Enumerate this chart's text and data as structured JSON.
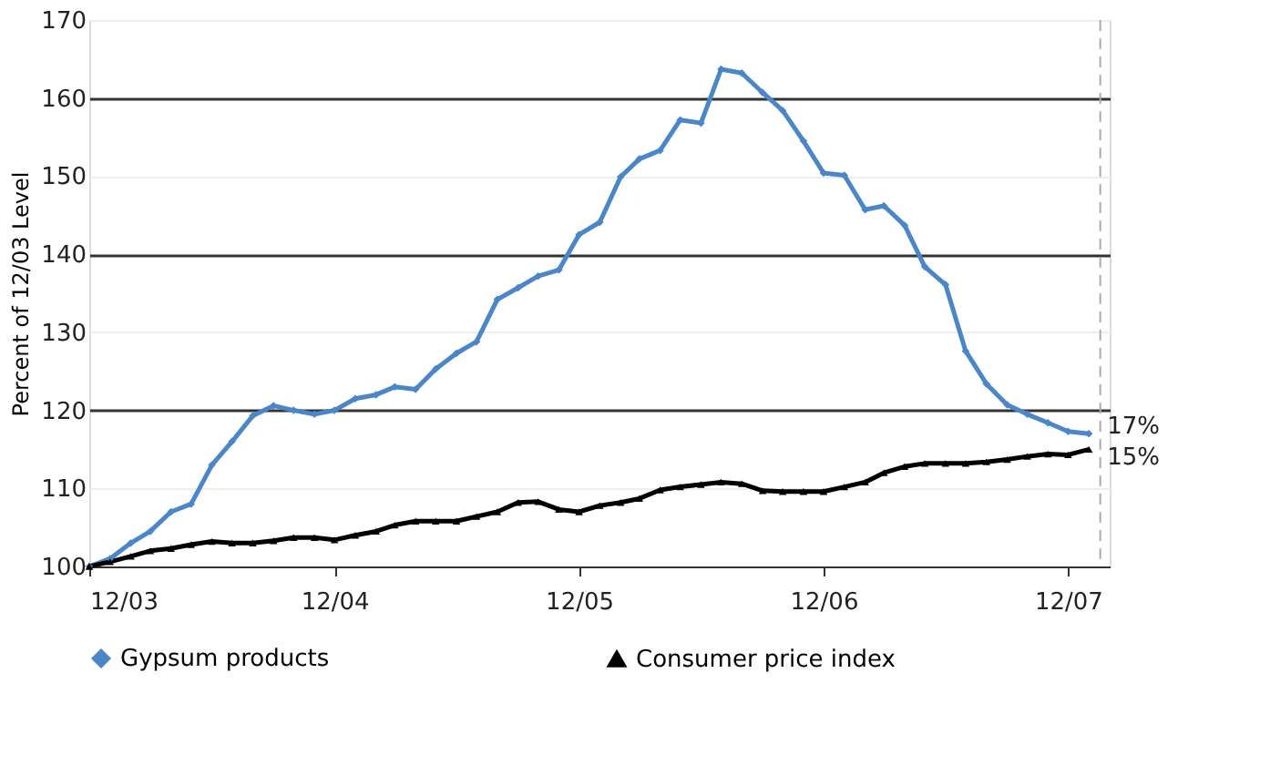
{
  "chart_data": {
    "type": "line",
    "ylabel": "Percent of 12/03 Level",
    "x": [
      "2003-12",
      "2004-01",
      "2004-02",
      "2004-03",
      "2004-04",
      "2004-05",
      "2004-06",
      "2004-07",
      "2004-08",
      "2004-09",
      "2004-10",
      "2004-11",
      "2004-12",
      "2005-01",
      "2005-02",
      "2005-03",
      "2005-04",
      "2005-05",
      "2005-06",
      "2005-07",
      "2005-08",
      "2005-09",
      "2005-10",
      "2005-11",
      "2005-12",
      "2006-01",
      "2006-02",
      "2006-03",
      "2006-04",
      "2006-05",
      "2006-06",
      "2006-07",
      "2006-08",
      "2006-09",
      "2006-10",
      "2006-11",
      "2006-12",
      "2007-01",
      "2007-02",
      "2007-03",
      "2007-04",
      "2007-05",
      "2007-06",
      "2007-07",
      "2007-08",
      "2007-09",
      "2007-10",
      "2007-11",
      "2007-12",
      "2008-01"
    ],
    "series": [
      {
        "name": "Gypsum products",
        "color": "#4a86c8",
        "marker": "diamond",
        "values": [
          100,
          101,
          103,
          104.5,
          107,
          108,
          113,
          116,
          119.3,
          120.6,
          120,
          119.5,
          120,
          121.5,
          122,
          123,
          122.7,
          125.3,
          127.3,
          128.8,
          134.2,
          135.7,
          137.2,
          138,
          142.5,
          144.1,
          149.9,
          152.2,
          153.3,
          157.2,
          156.8,
          163.7,
          163.2,
          160.7,
          158.4,
          154.5,
          150.4,
          150.1,
          145.7,
          146.2,
          143.7,
          138.4,
          136.1,
          127.6,
          123.4,
          120.7,
          119.5,
          118.4,
          117.3,
          117
        ]
      },
      {
        "name": "Consumer price index",
        "color": "#000000",
        "marker": "triangle",
        "values": [
          100,
          100.6,
          101.3,
          102,
          102.3,
          102.8,
          103.2,
          103,
          103,
          103.3,
          103.7,
          103.7,
          103.4,
          104,
          104.5,
          105.3,
          105.8,
          105.8,
          105.8,
          106.4,
          107,
          108.2,
          108.3,
          107.3,
          107,
          107.8,
          108.2,
          108.7,
          109.8,
          110.2,
          110.5,
          110.8,
          110.6,
          109.7,
          109.6,
          109.6,
          109.6,
          110.2,
          110.8,
          112,
          112.8,
          113.2,
          113.2,
          113.2,
          113.4,
          113.7,
          114.1,
          114.4,
          114.3,
          115
        ]
      }
    ],
    "xlim": [
      "2003-12",
      "2008-02"
    ],
    "xticks": [
      {
        "value": "2003-12",
        "label": "12/03"
      },
      {
        "value": "2004-12",
        "label": "12/04"
      },
      {
        "value": "2005-12",
        "label": "12/05"
      },
      {
        "value": "2006-12",
        "label": "12/06"
      },
      {
        "value": "2007-12",
        "label": "12/07"
      }
    ],
    "ylim": [
      100,
      170
    ],
    "yticks": [
      100,
      110,
      120,
      130,
      140,
      150,
      160,
      170
    ],
    "grid": "y",
    "legend": "bottom",
    "line_style": "solid",
    "ref_lines": [
      {
        "axis": "x",
        "value": "2008-01-18",
        "color": "#aaaaaa",
        "line_style": "dashed"
      }
    ],
    "annotations": [
      {
        "text": "17%",
        "x": "2008-01",
        "y": 118
      },
      {
        "text": "15%",
        "x": "2008-01",
        "y": 114
      }
    ]
  }
}
